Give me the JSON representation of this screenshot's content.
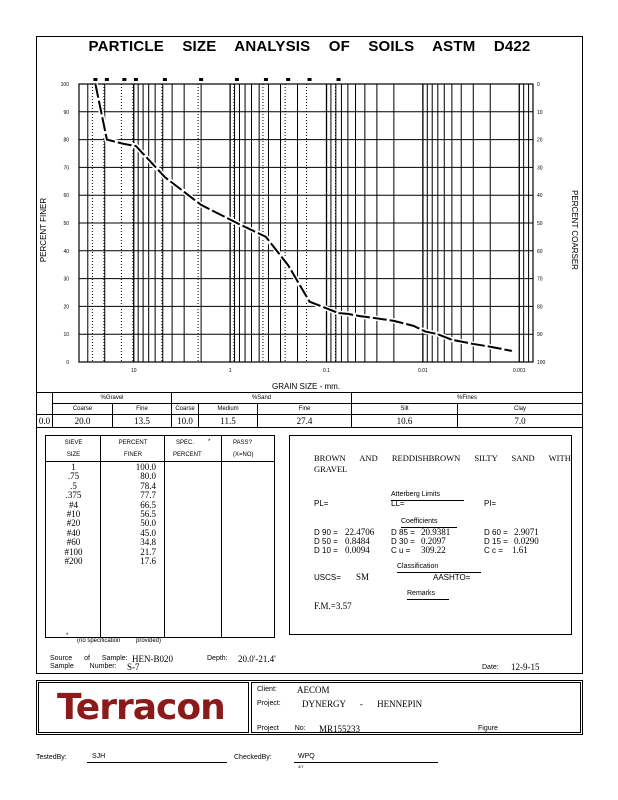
{
  "title": "PARTICLE SIZE ANALYSIS OF SOILS ASTM D422",
  "chart_data": {
    "type": "line",
    "title": "PARTICLE SIZE ANALYSIS OF SOILS ASTM D422",
    "xlabel": "GRAIN SIZE - mm.",
    "ylabel": "PERCENT FINER",
    "ylabel_right": "PERCENT COARSER",
    "xscale": "log-reversed",
    "xlim": [
      37,
      0.00072
    ],
    "ylim": [
      0,
      100
    ],
    "x_ticks": [
      "10",
      "1",
      "0.1",
      "0.01",
      "0.001"
    ],
    "x_tick_values": [
      10,
      1,
      0.1,
      0.01,
      0.001
    ],
    "y_ticks_left": [
      "0",
      "10",
      "20",
      "30",
      "40",
      "50",
      "60",
      "70",
      "80",
      "90",
      "100"
    ],
    "y_ticks_right": [
      "100",
      "90",
      "80",
      "70",
      "60",
      "50",
      "40",
      "30",
      "20",
      "10",
      "0"
    ],
    "sieve_sizes_mm": [
      25,
      19,
      12.5,
      9.5,
      4.75,
      2,
      0.85,
      0.425,
      0.25,
      0.15,
      0.075
    ],
    "series": [
      {
        "name": "Gradation",
        "x": [
          25,
          19,
          12.5,
          9.5,
          4.75,
          2,
          0.85,
          0.425,
          0.25,
          0.15,
          0.075,
          0.06,
          0.045,
          0.03,
          0.02,
          0.0125,
          0.0095,
          0.007,
          0.005,
          0.003,
          0.002,
          0.0012
        ],
        "y": [
          100,
          80,
          78.4,
          77.7,
          66.5,
          56.5,
          50,
          45,
          34.8,
          21.7,
          17.6,
          17.3,
          16.5,
          15.7,
          14.8,
          13,
          11,
          10,
          8,
          6.5,
          5.5,
          4
        ]
      }
    ]
  },
  "gradation": {
    "groups": [
      "%Gravel",
      "%Sand",
      "%Fines"
    ],
    "headers": [
      "Coarse",
      "Fine",
      "Coarse",
      "Medium",
      "Fine",
      "Silt",
      "Clay"
    ],
    "first": "0.0",
    "values": [
      "20.0",
      "13.5",
      "10.0",
      "11.5",
      "27.4",
      "10.6",
      "7.0"
    ]
  },
  "sieve": {
    "h1": [
      "SIEVE",
      "PERCENT",
      "SPEC.",
      "PASS?"
    ],
    "h2": [
      "SIZE",
      "FINER",
      "PERCENT",
      "(X=NO)"
    ],
    "star": "*",
    "sizes": [
      "1",
      ".75",
      ".5",
      ".375",
      "#4",
      "#10",
      "#20",
      "#40",
      "#60",
      "#100",
      "#200"
    ],
    "finer": [
      "100.0",
      "80.0",
      "78.4",
      "77.7",
      "66.5",
      "56.5",
      "50.0",
      "45.0",
      "34.8",
      "21.7",
      "17.6"
    ],
    "note_a": "(no specification",
    "note_b": "provided)"
  },
  "desc": {
    "line1": "BROWN AND REDDISHBROWN SILTY SAND WITH",
    "line2": "GRAVEL",
    "atterberg": "Atterberg Limits",
    "pl": "PL=",
    "ll": "LL=",
    "pi": "PI=",
    "coef": "Coefficients",
    "d90": "D 90 =",
    "d90v": "22.4706",
    "d85": "D 85 =",
    "d85v": "20.9381",
    "d60": "D 60 =",
    "d60v": "2.9071",
    "d50": "D 50 =",
    "d50v": "0.8484",
    "d30": "D 30 =",
    "d30v": "0.2097",
    "d15": "D 15 =",
    "d15v": "0.0290",
    "d10": "D 10 =",
    "d10v": "0.0094",
    "cu": "C u =",
    "cuv": "309.22",
    "cc": "C c =",
    "ccv": "1.61",
    "classification": "Classification",
    "uscs": "USCS=",
    "uscsv": "SM",
    "aashto": "AASHTO=",
    "remarks": "Remarks",
    "fm": "F.M.=3.57"
  },
  "sample": {
    "source_l": "Source of Sample:",
    "source": "HEN-B020",
    "depth_l": "Depth:",
    "depth": "20.0'-21.4'",
    "num_l": "Sample Number:",
    "num": "S-7",
    "date_l": "Date:",
    "date": "12-9-15"
  },
  "footer": {
    "logo": "Terracon",
    "logo_color": "#8b1a1a",
    "client_l": "Client:",
    "client": "AECOM",
    "project_l": "Project:",
    "project": "DYNERGY - HENNEPIN",
    "projno_l": "Project No:",
    "projno": "MR155233",
    "figure_l": "Figure",
    "tested_l": "TestedBy:",
    "tested": "SJH",
    "checked_l": "CheckedBy:",
    "checked": "WPQ",
    "checked_sub": "4/7"
  }
}
